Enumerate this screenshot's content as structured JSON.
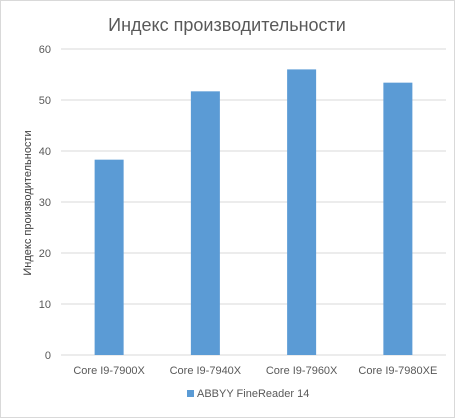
{
  "chart_data": {
    "type": "bar",
    "title": "Индекс производительности",
    "ylabel": "Индекс производительности",
    "xlabel": "",
    "categories": [
      "Core I9-7900X",
      "Core I9-7940X",
      "Core I9-7960X",
      "Core I9-7980XE"
    ],
    "series": [
      {
        "name": "ABBYY FineReader 14",
        "values": [
          38.3,
          51.7,
          56.0,
          53.4
        ],
        "color": "#5b9bd5"
      }
    ],
    "ylim": [
      0,
      60
    ],
    "yticks": [
      0,
      10,
      20,
      30,
      40,
      50,
      60
    ],
    "grid": true,
    "legend_position": "bottom"
  }
}
